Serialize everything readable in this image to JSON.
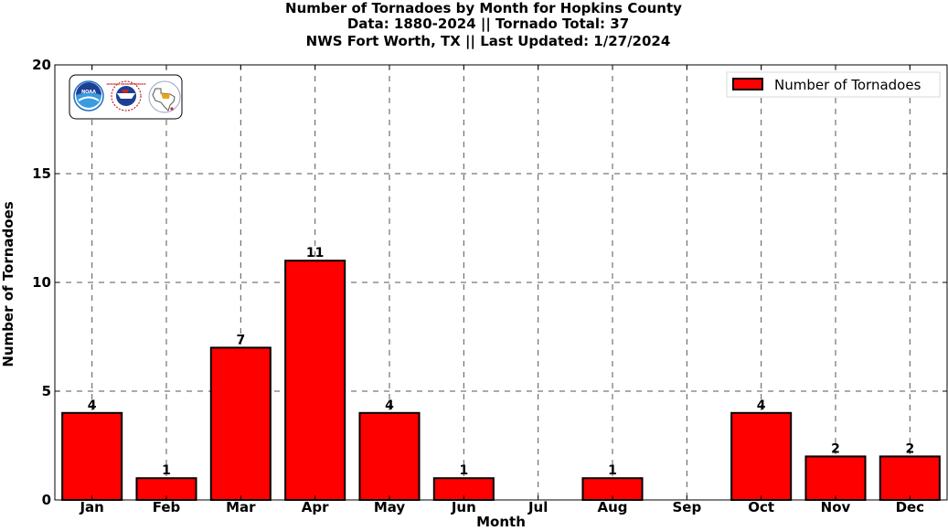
{
  "chart_data": {
    "type": "bar",
    "title_lines": [
      "Number of Tornadoes by Month for Hopkins County",
      "Data: 1880-2024 || Tornado Total: 37",
      "NWS Fort Worth, TX || Last Updated: 1/27/2024"
    ],
    "xlabel": "Month",
    "ylabel": "Number of Tornadoes",
    "categories": [
      "Jan",
      "Feb",
      "Mar",
      "Apr",
      "May",
      "Jun",
      "Jul",
      "Aug",
      "Sep",
      "Oct",
      "Nov",
      "Dec"
    ],
    "series": [
      {
        "name": "Number of Tornadoes",
        "values": [
          4,
          1,
          7,
          11,
          4,
          1,
          0,
          1,
          0,
          4,
          2,
          2
        ],
        "color": "#ff0000",
        "edge_color": "#000000"
      }
    ],
    "data_labels": [
      "4",
      "1",
      "7",
      "11",
      "4",
      "1",
      "",
      "1",
      "",
      "4",
      "2",
      "2"
    ],
    "ylim": [
      0,
      20
    ],
    "yticks": [
      0,
      5,
      10,
      15,
      20
    ],
    "ytick_labels": [
      "0",
      "5",
      "10",
      "15",
      "20"
    ],
    "grid": true,
    "grid_style": "dashed",
    "legend_placement": "top-right"
  },
  "logos": {
    "noaa_text": "NOAA",
    "nws_text": "NATIONAL WEATHER SERVICE",
    "names": [
      "noaa-logo",
      "nws-logo",
      "nws-fort-worth-logo"
    ]
  },
  "colors": {
    "bar_fill": "#ff0000",
    "bar_edge": "#000000",
    "grid": "#555555",
    "noaa_blue": "#1a6fc4",
    "nws_blue": "#1c3f94"
  }
}
